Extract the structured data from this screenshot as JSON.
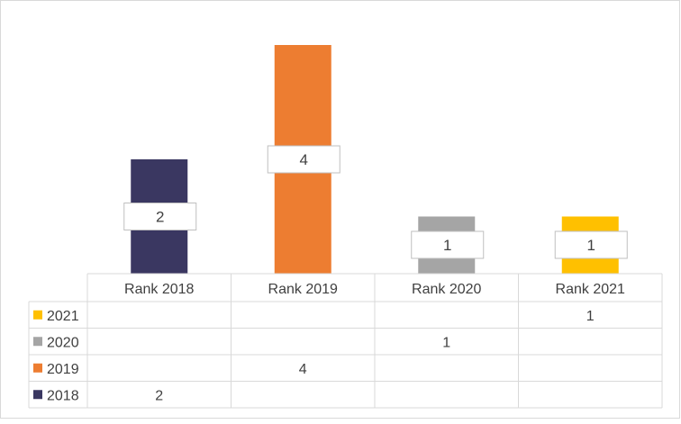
{
  "chart_data": {
    "type": "bar",
    "categories": [
      "Rank 2018",
      "Rank 2019",
      "Rank 2020",
      "Rank 2021"
    ],
    "series": [
      {
        "name": "2021",
        "color": "#FFC000",
        "values": [
          null,
          null,
          null,
          1
        ]
      },
      {
        "name": "2020",
        "color": "#A5A5A5",
        "values": [
          null,
          null,
          1,
          null
        ]
      },
      {
        "name": "2019",
        "color": "#ED7D31",
        "values": [
          null,
          4,
          null,
          null
        ]
      },
      {
        "name": "2018",
        "color": "#3A3761",
        "values": [
          2,
          null,
          null,
          null
        ]
      }
    ],
    "bar_values": [
      {
        "category": "Rank 2018",
        "series": "2018",
        "value": 2
      },
      {
        "category": "Rank 2019",
        "series": "2019",
        "value": 4
      },
      {
        "category": "Rank 2020",
        "series": "2020",
        "value": 1
      },
      {
        "category": "Rank 2021",
        "series": "2021",
        "value": 1
      }
    ],
    "ylim": [
      0,
      4.1
    ],
    "data_table": true,
    "grid": false,
    "title": "",
    "xlabel": "",
    "ylabel": ""
  }
}
